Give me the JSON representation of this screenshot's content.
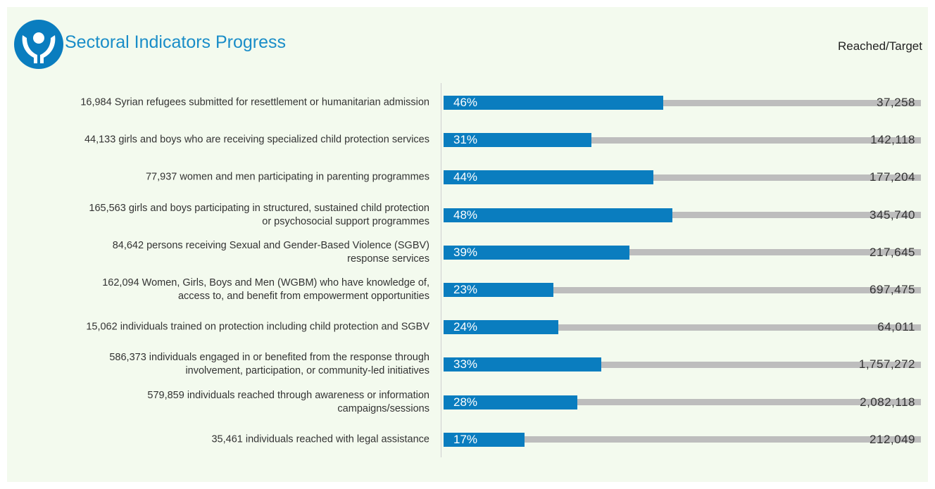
{
  "chart_data": {
    "type": "bar",
    "orientation": "horizontal",
    "title": "Sectoral Indicators Progress",
    "legend_label": "Reached/Target",
    "categories": [
      "16,984 Syrian refugees submitted for resettlement or humanitarian admission",
      "44,133 girls and boys who are receiving specialized child protection services",
      "77,937 women and men participating in parenting programmes",
      "165,563 girls and boys participating in structured, sustained child protection\nor psychosocial support programmes",
      "84,642 persons receiving Sexual and Gender-Based Violence (SGBV)\nresponse services",
      "162,094 Women, Girls, Boys and Men (WGBM) who have knowledge of,\naccess to, and benefit from empowerment opportunities",
      "15,062 individuals trained on protection including child protection and SGBV",
      "586,373 individuals engaged in or benefited from the response through\ninvolvement, participation, or community-led initiatives",
      "579,859 individuals reached through awareness or information\ncampaigns/sessions",
      "35,461 individuals reached with legal assistance"
    ],
    "values": [
      46,
      31,
      44,
      48,
      39,
      23,
      24,
      33,
      28,
      17
    ],
    "value_labels": [
      "46%",
      "31%",
      "44%",
      "48%",
      "39%",
      "23%",
      "24%",
      "33%",
      "28%",
      "17%"
    ],
    "targets": [
      37258,
      142118,
      177204,
      345740,
      217645,
      697475,
      64011,
      1757272,
      2082118,
      212049
    ],
    "target_labels": [
      "37,258",
      "142,118",
      "177,204",
      "345,740",
      "217,645",
      "697,475",
      "64,011",
      "1,757,272",
      "2,082,118",
      "212,049"
    ],
    "xlim": [
      0,
      100
    ],
    "color": "#0a7dbf",
    "track_color": "#bdbdbd"
  }
}
